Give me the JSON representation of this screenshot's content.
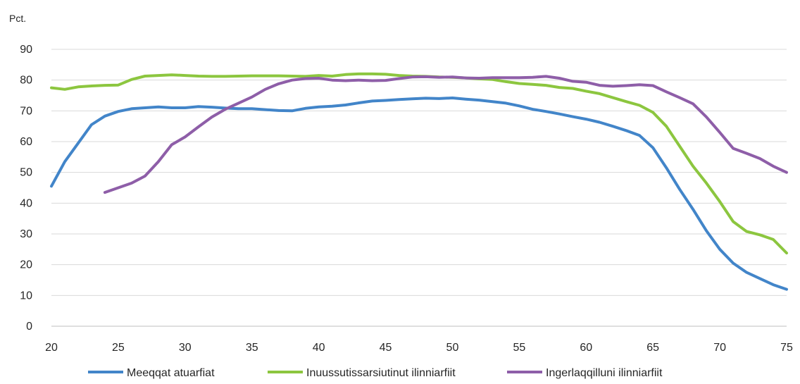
{
  "chart_data": {
    "type": "line",
    "title": "",
    "unit_label": "Pct.",
    "xlabel": "",
    "ylabel": "",
    "xlim": [
      20,
      75
    ],
    "ylim": [
      0,
      90
    ],
    "x_ticks": [
      20,
      25,
      30,
      35,
      40,
      45,
      50,
      55,
      60,
      65,
      70,
      75
    ],
    "y_ticks": [
      0,
      10,
      20,
      30,
      40,
      50,
      60,
      70,
      80,
      90
    ],
    "grid": true,
    "legend_position": "bottom",
    "series": [
      {
        "name": "Meeqqat atuarfiat",
        "color": "#4285c9",
        "x": [
          20,
          21,
          22,
          23,
          24,
          25,
          26,
          27,
          28,
          29,
          30,
          31,
          32,
          33,
          34,
          35,
          36,
          37,
          38,
          39,
          40,
          41,
          42,
          43,
          44,
          45,
          46,
          47,
          48,
          49,
          50,
          51,
          52,
          53,
          54,
          55,
          56,
          57,
          58,
          59,
          60,
          61,
          62,
          63,
          64,
          65,
          66,
          67,
          68,
          69,
          70,
          71,
          72,
          73,
          74,
          75
        ],
        "values": [
          45.5,
          53.5,
          59.5,
          65.5,
          68.3,
          69.8,
          70.7,
          71.0,
          71.3,
          71.0,
          71.0,
          71.4,
          71.2,
          70.9,
          70.7,
          70.7,
          70.4,
          70.1,
          70.0,
          70.8,
          71.3,
          71.5,
          71.9,
          72.6,
          73.2,
          73.4,
          73.7,
          73.9,
          74.1,
          74.0,
          74.2,
          73.8,
          73.5,
          73.0,
          72.5,
          71.6,
          70.5,
          69.8,
          69.0,
          68.1,
          67.3,
          66.3,
          65.0,
          63.6,
          62.0,
          58.0,
          51.5,
          44.5,
          38.0,
          31.0,
          25.0,
          20.5,
          17.5,
          15.5,
          13.5,
          12.0
        ]
      },
      {
        "name": "Inuussutissarsiutinut ilinniarfiit",
        "color": "#8cc63f",
        "x": [
          20,
          21,
          22,
          23,
          24,
          25,
          26,
          27,
          28,
          29,
          30,
          31,
          32,
          33,
          34,
          35,
          36,
          37,
          38,
          39,
          40,
          41,
          42,
          43,
          44,
          45,
          46,
          47,
          48,
          49,
          50,
          51,
          52,
          53,
          54,
          55,
          56,
          57,
          58,
          59,
          60,
          61,
          62,
          63,
          64,
          65,
          66,
          67,
          68,
          69,
          70,
          71,
          72,
          73,
          74,
          75
        ],
        "values": [
          77.5,
          77.0,
          77.8,
          78.1,
          78.3,
          78.4,
          80.2,
          81.3,
          81.5,
          81.7,
          81.5,
          81.3,
          81.2,
          81.2,
          81.3,
          81.4,
          81.4,
          81.4,
          81.3,
          81.2,
          81.5,
          81.3,
          81.8,
          82.0,
          82.0,
          81.9,
          81.5,
          81.3,
          81.2,
          81.0,
          80.9,
          80.7,
          80.4,
          80.2,
          79.5,
          78.9,
          78.6,
          78.3,
          77.6,
          77.3,
          76.4,
          75.6,
          74.3,
          73.0,
          71.8,
          69.5,
          65.0,
          58.5,
          52.0,
          46.5,
          40.5,
          34.0,
          30.8,
          29.7,
          28.2,
          23.8
        ]
      },
      {
        "name": "Ingerlaqqilluni ilinniarfiit",
        "color": "#8e5ea8",
        "x": [
          24,
          25,
          26,
          27,
          28,
          29,
          30,
          31,
          32,
          33,
          34,
          35,
          36,
          37,
          38,
          39,
          40,
          41,
          42,
          43,
          44,
          45,
          46,
          47,
          48,
          49,
          50,
          51,
          52,
          53,
          54,
          55,
          56,
          57,
          58,
          59,
          60,
          61,
          62,
          63,
          64,
          65,
          66,
          67,
          68,
          69,
          70,
          71,
          72,
          73,
          74,
          75
        ],
        "values": [
          43.5,
          45.0,
          46.5,
          48.8,
          53.5,
          59.0,
          61.5,
          64.8,
          68.0,
          70.5,
          72.5,
          74.5,
          77.0,
          78.8,
          80.0,
          80.5,
          80.6,
          80.0,
          79.8,
          80.0,
          79.8,
          79.9,
          80.5,
          81.0,
          81.1,
          80.9,
          81.0,
          80.7,
          80.6,
          80.8,
          80.8,
          80.8,
          80.9,
          81.2,
          80.6,
          79.6,
          79.3,
          78.3,
          78.0,
          78.2,
          78.5,
          78.2,
          76.2,
          74.3,
          72.3,
          68.0,
          63.0,
          57.8,
          56.2,
          54.5,
          52.0,
          50.0
        ]
      }
    ]
  }
}
